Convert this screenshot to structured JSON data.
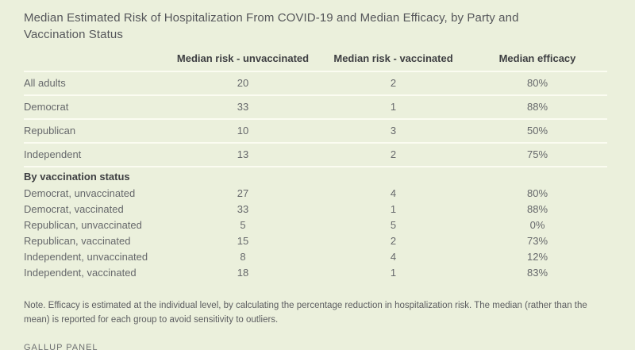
{
  "chart_data": {
    "type": "table",
    "title": "Median Estimated Risk of Hospitalization From COVID-19 and Median Efficacy, by Party and Vaccination Status",
    "columns": [
      "",
      "Median risk - unvaccinated",
      "Median risk - vaccinated",
      "Median efficacy"
    ],
    "sections": [
      {
        "name": "by-party",
        "rows": [
          {
            "label": "All adults",
            "values": [
              20,
              2,
              "80%"
            ]
          },
          {
            "label": "Democrat",
            "values": [
              33,
              1,
              "88%"
            ]
          },
          {
            "label": "Republican",
            "values": [
              10,
              3,
              "50%"
            ]
          },
          {
            "label": "Independent",
            "values": [
              13,
              2,
              "75%"
            ]
          }
        ]
      },
      {
        "name": "by-vaccination-status",
        "header": "By vaccination status",
        "rows": [
          {
            "label": "Democrat, unvaccinated",
            "values": [
              27,
              4,
              "80%"
            ]
          },
          {
            "label": "Democrat, vaccinated",
            "values": [
              33,
              1,
              "88%"
            ]
          },
          {
            "label": "Republican, unvaccinated",
            "values": [
              5,
              5,
              "0%"
            ]
          },
          {
            "label": "Republican, vaccinated",
            "values": [
              15,
              2,
              "73%"
            ]
          },
          {
            "label": "Independent, unvaccinated",
            "values": [
              8,
              4,
              "12%"
            ]
          },
          {
            "label": "Independent, vaccinated",
            "values": [
              18,
              1,
              "83%"
            ]
          }
        ]
      }
    ],
    "layout": {
      "grid": "horizontal-row-dividers",
      "value_alignment": "center",
      "label_alignment": "left"
    }
  },
  "note": "Note. Efficacy is estimated at the individual level, by calculating the percentage reduction in hospitalization risk. The median (rather than the mean) is reported for each group to avoid sensitivity to outliers.",
  "source": "GALLUP PANEL",
  "colors": {
    "background": "#EBF0DC",
    "divider": "#FBFCF1",
    "title_text": "#55565A",
    "heading_text": "#3E3F42",
    "body_text": "#66686B",
    "note_text": "#5C5D60",
    "source_text": "#6E7072"
  }
}
